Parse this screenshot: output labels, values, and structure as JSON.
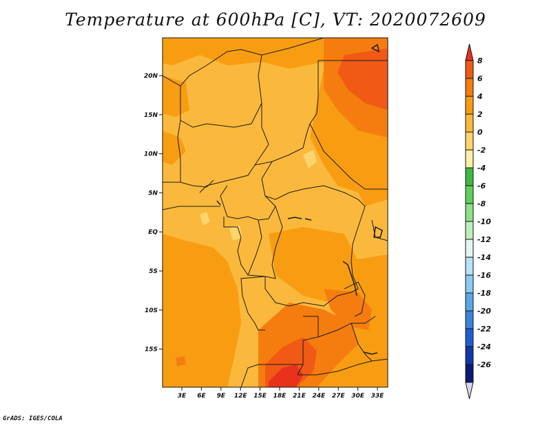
{
  "title": "Temperature at 600hPa [C], VT: 2020072609",
  "credit": "GrADS: IGES/COLA",
  "lat_labels": [
    "20N",
    "15N",
    "10N",
    "5N",
    "EQ",
    "5S",
    "10S",
    "15S"
  ],
  "lon_labels": [
    "3E",
    "6E",
    "9E",
    "12E",
    "15E",
    "18E",
    "21E",
    "24E",
    "27E",
    "30E",
    "33E"
  ],
  "colorbar": {
    "labels": [
      "8",
      "6",
      "4",
      "2",
      "0",
      "-2",
      "-4",
      "-6",
      "-8",
      "-10",
      "-12",
      "-14",
      "-16",
      "-18",
      "-20",
      "-22",
      "-24",
      "-26"
    ],
    "colors": [
      "#e8321c",
      "#f05a14",
      "#f57d0f",
      "#f89d12",
      "#fab93c",
      "#fdd56e",
      "#fff0a8",
      "#3fb846",
      "#5fcf5a",
      "#8ee08a",
      "#bdf0b9",
      "#e3f6f4",
      "#b7e3f5",
      "#8ccbf0",
      "#5ba8e6",
      "#3a84dc",
      "#1f5ed0",
      "#1237a8",
      "#0b1a73",
      "#d8d8f0"
    ]
  },
  "field_colors": {
    "base": "#fab93c",
    "warm": "#f89d12",
    "hot": "#f57d0f",
    "hotter": "#f05a14",
    "hottest": "#e8321c",
    "cool": "#fdd56e",
    "border": "#1a1a1a"
  }
}
